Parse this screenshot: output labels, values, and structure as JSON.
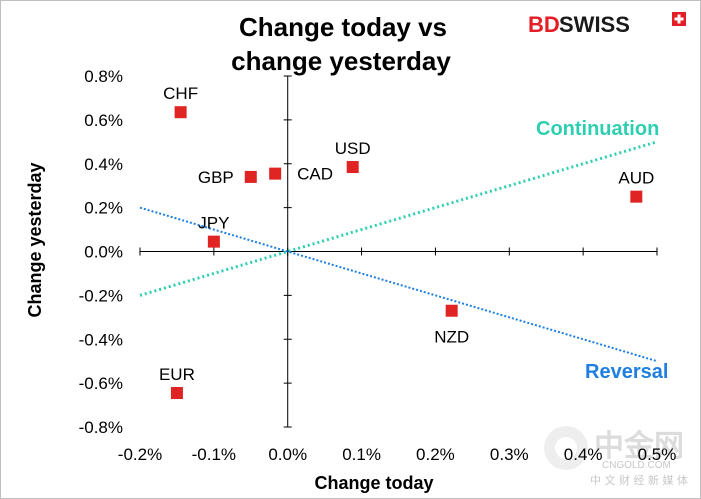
{
  "brand": {
    "bd": "BD",
    "swiss": "SWISS",
    "red": "#e41e26"
  },
  "watermark": {
    "main": "中金网",
    "site": "CNGOLD.COM",
    "sub": "中 文 财 经 新 媒 体"
  },
  "colors": {
    "marker": "#e02424",
    "continuation": "#2ecfb0",
    "reversal": "#1e7fe0",
    "axis": "#000000"
  },
  "chart_data": {
    "type": "scatter",
    "title": [
      "Change today vs",
      "change yesterday"
    ],
    "xlabel": "Change today",
    "ylabel": "Change yesterday",
    "xlim": [
      -0.2,
      0.5
    ],
    "ylim": [
      -0.8,
      0.8
    ],
    "xticks": [
      -0.2,
      -0.1,
      0.0,
      0.1,
      0.2,
      0.3,
      0.4,
      0.5
    ],
    "xtick_labels": [
      "-0.2%",
      "-0.1%",
      "0.0%",
      "0.1%",
      "0.2%",
      "0.3%",
      "0.4%",
      "0.5%"
    ],
    "yticks": [
      0.8,
      0.6,
      0.4,
      0.2,
      0.0,
      -0.2,
      -0.4,
      -0.6,
      -0.8
    ],
    "ytick_labels": [
      "0.8%",
      "0.6%",
      "0.4%",
      "0.2%",
      "0.0%",
      "-0.2%",
      "-0.4%",
      "-0.6%",
      "-0.8%"
    ],
    "points": [
      {
        "label": "CHF",
        "x": -0.145,
        "y": 0.635,
        "label_pos": "above"
      },
      {
        "label": "GBP",
        "x": -0.05,
        "y": 0.34,
        "label_pos": "left"
      },
      {
        "label": "CAD",
        "x": -0.017,
        "y": 0.355,
        "label_pos": "right"
      },
      {
        "label": "USD",
        "x": 0.088,
        "y": 0.385,
        "label_pos": "above"
      },
      {
        "label": "JPY",
        "x": -0.1,
        "y": 0.045,
        "label_pos": "above"
      },
      {
        "label": "AUD",
        "x": 0.472,
        "y": 0.25,
        "label_pos": "above"
      },
      {
        "label": "NZD",
        "x": 0.222,
        "y": -0.27,
        "label_pos": "below"
      },
      {
        "label": "EUR",
        "x": -0.15,
        "y": -0.645,
        "label_pos": "above"
      }
    ],
    "trendlines": [
      {
        "name": "Continuation",
        "x": [
          -0.2,
          0.5
        ],
        "y": [
          -0.2,
          0.5
        ]
      },
      {
        "name": "Reversal",
        "x": [
          -0.2,
          0.5
        ],
        "y": [
          0.2,
          -0.5
        ]
      }
    ]
  }
}
